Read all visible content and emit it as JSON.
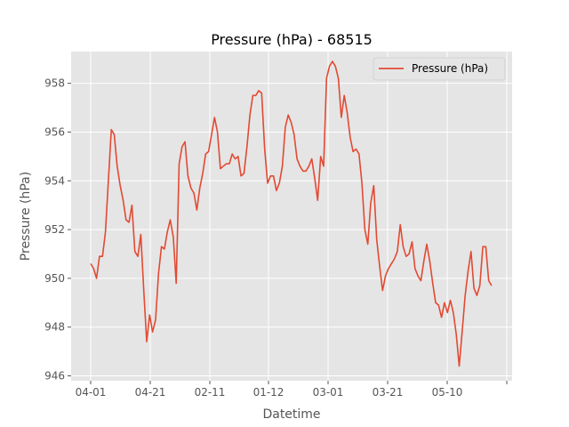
{
  "chart_data": {
    "type": "line",
    "title": "Pressure (hPa) - 68515",
    "xlabel": "Datetime",
    "ylabel": "Pressure (hPa)",
    "x_tick_labels": [
      "04-01",
      "04-21",
      "02-11",
      "01-12",
      "03-01",
      "03-21",
      "05-10",
      ""
    ],
    "y_ticks": [
      946,
      948,
      950,
      952,
      954,
      956,
      958
    ],
    "ylim": [
      945.8,
      959.3
    ],
    "grid": true,
    "legend": "top-right",
    "series": [
      {
        "name": "Pressure (hPa)",
        "color": "#E24A33",
        "values": [
          950.6,
          950.4,
          950.0,
          950.9,
          950.9,
          951.9,
          954.0,
          956.1,
          955.9,
          954.6,
          953.8,
          953.2,
          952.4,
          952.3,
          953.0,
          951.1,
          950.9,
          951.8,
          949.5,
          947.4,
          948.5,
          947.8,
          948.3,
          950.2,
          951.3,
          951.2,
          951.9,
          952.4,
          951.7,
          949.8,
          954.7,
          955.4,
          955.6,
          954.2,
          953.7,
          953.5,
          952.8,
          953.7,
          954.3,
          955.1,
          955.2,
          955.9,
          956.6,
          956.0,
          954.5,
          954.6,
          954.7,
          954.7,
          955.1,
          954.9,
          955.0,
          954.2,
          954.3,
          955.4,
          956.7,
          957.5,
          957.5,
          957.7,
          957.6,
          955.3,
          953.9,
          954.2,
          954.2,
          953.6,
          953.9,
          954.6,
          956.2,
          956.7,
          956.4,
          955.9,
          954.9,
          954.6,
          954.4,
          954.4,
          954.6,
          954.9,
          954.1,
          953.2,
          955.0,
          954.6,
          958.2,
          958.7,
          958.9,
          958.7,
          958.2,
          956.6,
          957.5,
          956.8,
          955.8,
          955.2,
          955.3,
          955.1,
          953.9,
          952.0,
          951.4,
          953.1,
          953.8,
          951.6,
          950.5,
          949.5,
          950.1,
          950.4,
          950.6,
          950.8,
          951.1,
          952.2,
          951.3,
          950.9,
          951.0,
          951.5,
          950.4,
          950.1,
          949.9,
          950.7,
          951.4,
          950.7,
          949.8,
          949.0,
          948.9,
          948.4,
          949.0,
          948.6,
          949.1,
          948.6,
          947.7,
          946.4,
          947.8,
          949.3,
          950.3,
          951.1,
          949.6,
          949.3,
          949.7,
          951.3,
          951.3,
          949.9,
          949.7
        ]
      }
    ]
  }
}
